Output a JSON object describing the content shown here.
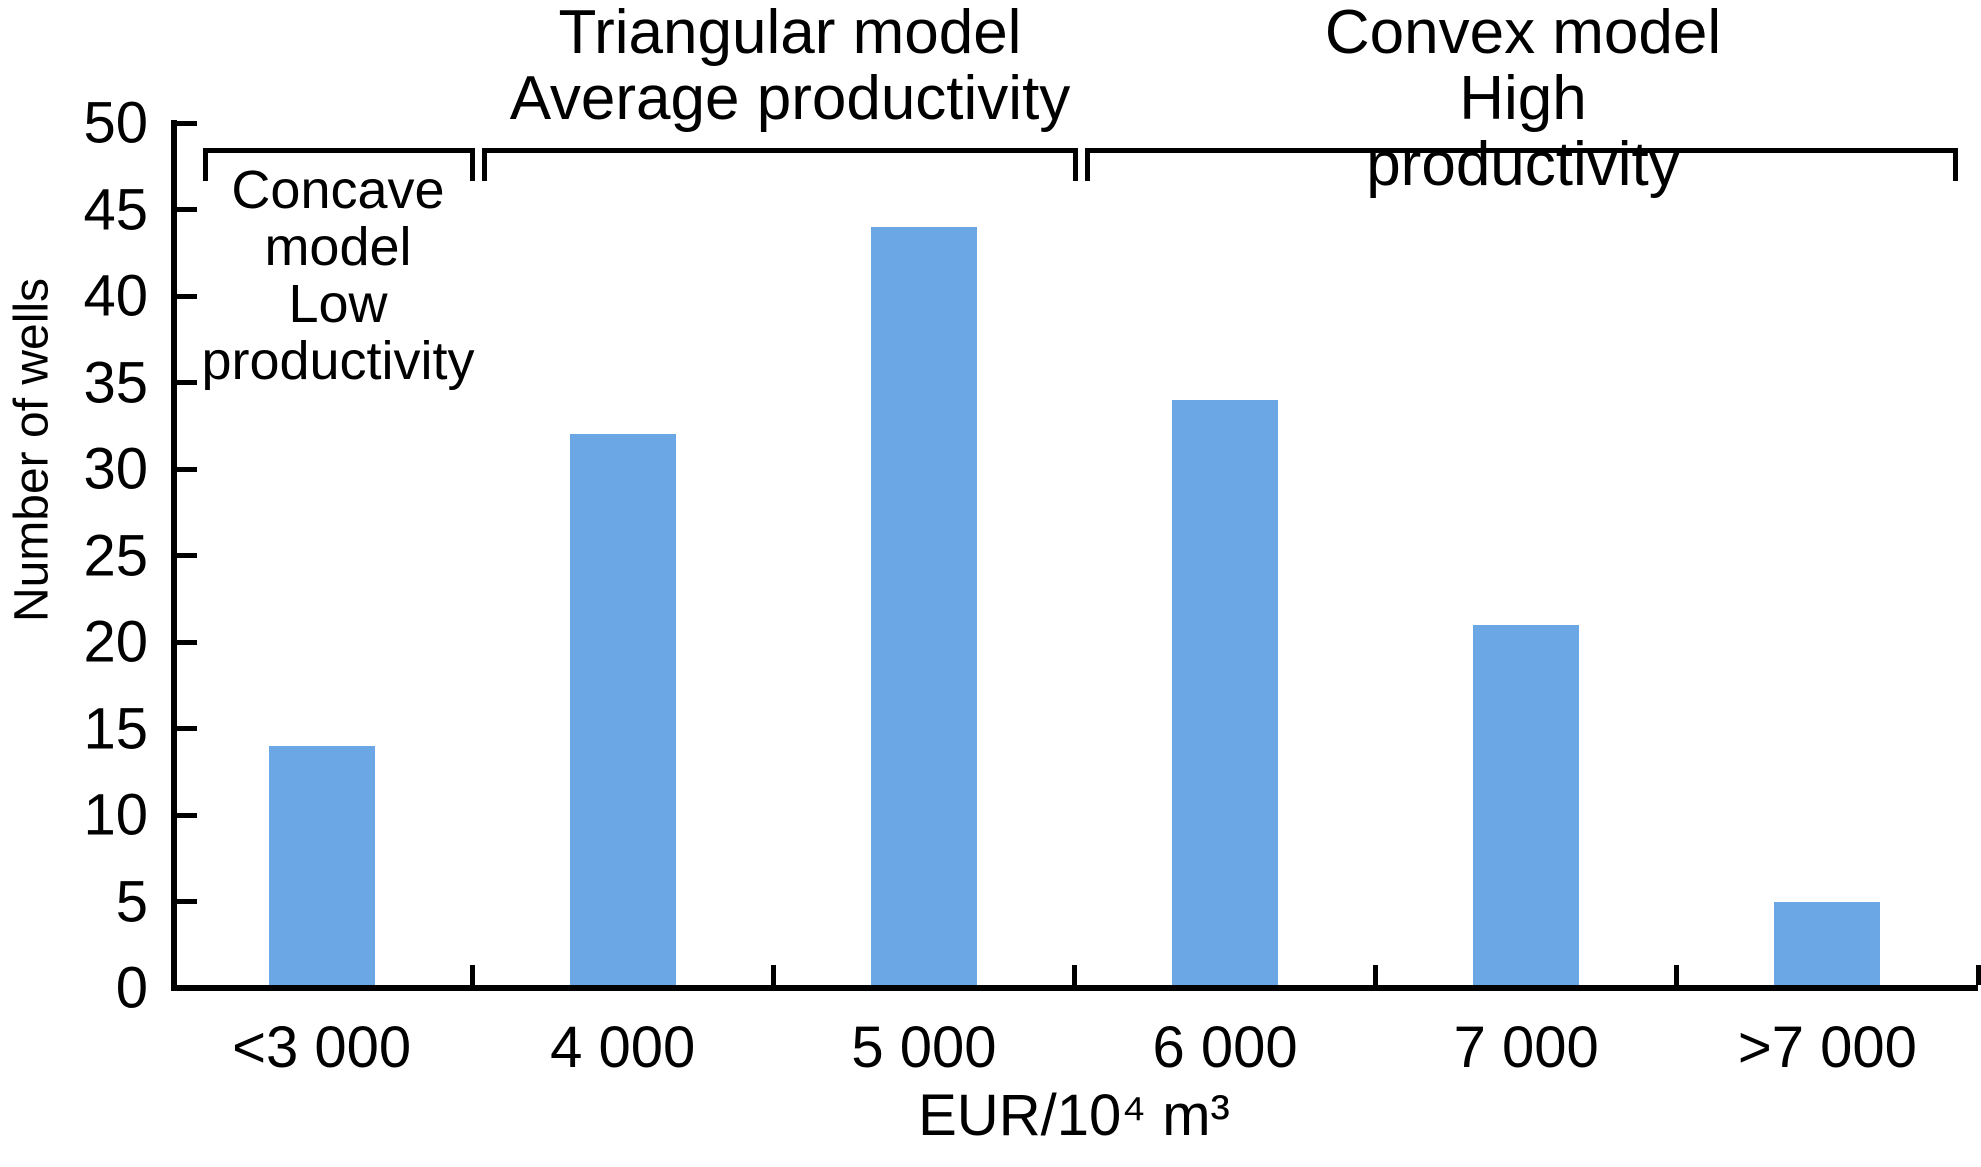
{
  "chart_data": {
    "type": "bar",
    "title": "",
    "categories": [
      "<3 000",
      "4 000",
      "5 000",
      "6 000",
      "7 000",
      ">7 000"
    ],
    "values": [
      14,
      32,
      44,
      34,
      21,
      5
    ],
    "xlabel": "EUR/10⁴ m³",
    "ylabel": "Number of wells",
    "ylim": [
      0,
      50
    ],
    "yticks": [
      0,
      5,
      10,
      15,
      20,
      25,
      30,
      35,
      40,
      45,
      50
    ],
    "bar_color": "#6CA7E5",
    "grid": false,
    "annotations": [
      {
        "text": "Concave\nmodel\nLow\nproductivity",
        "bracket": true,
        "from_category": 0,
        "to_category": 0,
        "label_position": "below-bracket"
      },
      {
        "text": "Triangular model\nAverage productivity",
        "bracket": true,
        "from_category": 1,
        "to_category": 2,
        "label_position": "above-bracket"
      },
      {
        "text": "Convex model\nHigh productivity",
        "bracket": true,
        "from_category": 3,
        "to_category": 5,
        "label_position": "above-bracket"
      }
    ]
  },
  "colors": {
    "axis": "#000000",
    "text": "#000000",
    "background": "#ffffff"
  }
}
